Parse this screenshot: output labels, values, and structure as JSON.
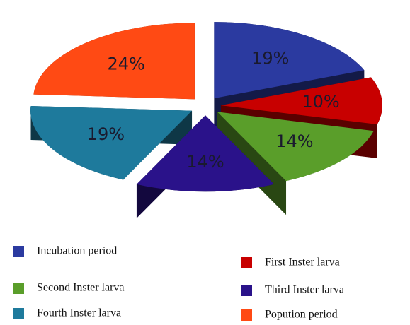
{
  "chart_data": {
    "type": "pie",
    "categories": [
      "Incubation period",
      "First Inster larva",
      "Second Inster larva",
      "Third Inster larva",
      "Fourth Inster larva",
      "Popution period"
    ],
    "values": [
      19,
      10,
      14,
      14,
      19,
      24
    ],
    "value_labels": [
      "19%",
      "10%",
      "14%",
      "14%",
      "19%",
      "24%"
    ],
    "colors": [
      "#2b3aa0",
      "#c80000",
      "#5a9e2a",
      "#2a128a",
      "#1e7a9c",
      "#ff4a14"
    ],
    "legend": "bottom"
  }
}
